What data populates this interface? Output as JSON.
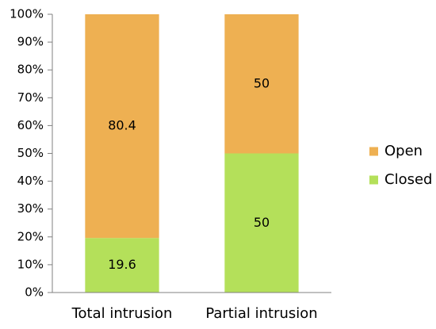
{
  "chart_data": {
    "type": "bar",
    "stacked": true,
    "categories": [
      "Total intrusion",
      "Partial intrusion"
    ],
    "series": [
      {
        "name": "Closed",
        "values": [
          19.6,
          50
        ],
        "color": "#B4E05A"
      },
      {
        "name": "Open",
        "values": [
          80.4,
          50
        ],
        "color": "#EEB052"
      }
    ],
    "data_labels": [
      [
        "19.6",
        "50"
      ],
      [
        "80.4",
        "50"
      ]
    ],
    "yticks": [
      "0%",
      "10%",
      "20%",
      "30%",
      "40%",
      "50%",
      "60%",
      "70%",
      "80%",
      "90%",
      "100%"
    ],
    "ylim": [
      0,
      100
    ],
    "grid": false,
    "legend": {
      "position": "right",
      "entries": [
        "Open",
        "Closed"
      ]
    },
    "title": "",
    "xlabel": "",
    "ylabel": ""
  }
}
